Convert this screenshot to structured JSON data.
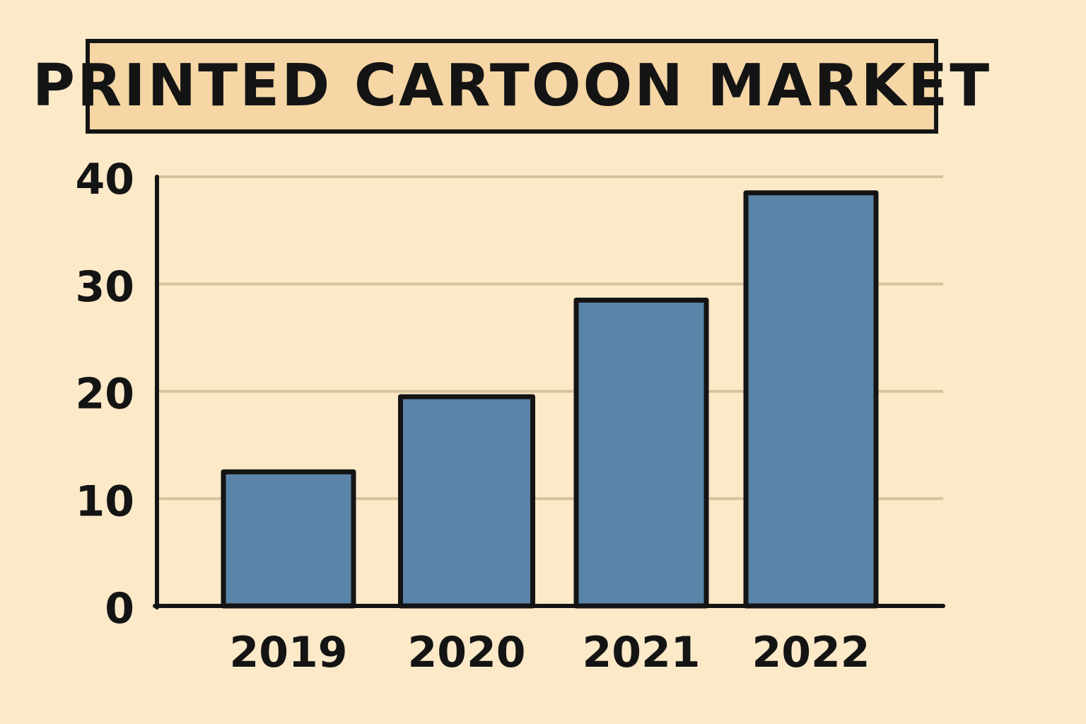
{
  "chart_data": {
    "type": "bar",
    "title": "PRINTED CARTOON MARKET",
    "categories": [
      "2019",
      "2020",
      "2021",
      "2022"
    ],
    "values": [
      12.5,
      19.5,
      28.5,
      38.5
    ],
    "yticks": [
      "0",
      "10",
      "20",
      "30",
      "40"
    ],
    "ylim": [
      0,
      40
    ],
    "xlabel": "",
    "ylabel": "",
    "grid": true,
    "colors": {
      "bar": "#5a84a8",
      "outline": "#141414",
      "grid": "#d6c29c",
      "background": "#fbe9c8",
      "title_fill": "#f5d6a4"
    }
  }
}
